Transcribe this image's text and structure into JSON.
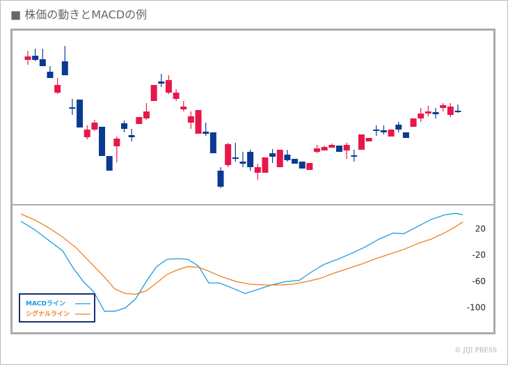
{
  "title": "■ 株価の動きとMACDの例",
  "credit": "© JIJI PRESS",
  "chart_data": [
    {
      "type": "candlestick",
      "ylim": [
        7,
        255
      ],
      "up_color": "#e8174a",
      "down_color": "#0a3a91",
      "open": [
        214,
        220,
        215,
        197,
        167,
        212,
        146,
        157,
        103,
        114,
        118,
        76,
        90,
        123,
        106,
        122,
        130,
        155,
        183,
        167,
        158,
        143,
        124,
        108,
        111,
        110,
        55,
        63,
        74,
        68,
        82,
        52,
        52,
        80,
        60,
        78,
        72,
        68,
        56,
        82,
        84,
        88,
        91,
        84,
        77,
        85,
        97,
        114,
        113,
        104,
        121,
        110,
        118,
        130,
        137,
        139,
        145,
        135,
        141
      ],
      "high": [
        227,
        230,
        230,
        205,
        188,
        234,
        158,
        157,
        120,
        128,
        118,
        76,
        104,
        127,
        115,
        132,
        152,
        178,
        194,
        192,
        172,
        155,
        140,
        142,
        124,
        110,
        60,
        95,
        95,
        82,
        85,
        65,
        74,
        86,
        85,
        85,
        72,
        68,
        66,
        92,
        91,
        94,
        91,
        95,
        85,
        107,
        102,
        120,
        120,
        114,
        125,
        110,
        130,
        145,
        148,
        145,
        152,
        152,
        150
      ],
      "low": [
        207,
        212,
        205,
        188,
        165,
        192,
        135,
        117,
        100,
        112,
        76,
        55,
        67,
        110,
        97,
        122,
        128,
        155,
        175,
        165,
        155,
        140,
        115,
        108,
        105,
        80,
        30,
        60,
        68,
        60,
        55,
        42,
        52,
        66,
        60,
        68,
        65,
        58,
        56,
        80,
        84,
        88,
        82,
        72,
        68,
        85,
        97,
        105,
        107,
        104,
        110,
        102,
        118,
        125,
        133,
        130,
        140,
        132,
        138
      ],
      "close": [
        219,
        214,
        205,
        188,
        178,
        192,
        144,
        117,
        114,
        124,
        76,
        55,
        101,
        115,
        103,
        132,
        140,
        178,
        180,
        185,
        167,
        147,
        133,
        142,
        108,
        80,
        32,
        93,
        72,
        65,
        60,
        60,
        74,
        75,
        85,
        70,
        65,
        58,
        66,
        87,
        89,
        92,
        82,
        92,
        75,
        107,
        102,
        112,
        110,
        114,
        114,
        102,
        130,
        137,
        140,
        136,
        149,
        147,
        139
      ]
    },
    {
      "type": "line",
      "xlim": [
        0,
        635
      ],
      "ylim": [
        -137,
        56
      ],
      "yticks": [
        20,
        -20,
        -60,
        -100
      ],
      "legend": "lower left",
      "series": [
        {
          "name": "MACDライン",
          "color": "#1a9be0",
          "x": [
            0,
            20,
            40,
            60,
            75,
            90,
            105,
            120,
            135,
            150,
            165,
            180,
            195,
            210,
            225,
            240,
            255,
            270,
            285,
            300,
            322,
            340,
            360,
            380,
            400,
            415,
            435,
            455,
            475,
            495,
            515,
            535,
            550,
            570,
            590,
            610,
            625,
            635
          ],
          "values": [
            32,
            19,
            3,
            -13,
            -39,
            -60,
            -76,
            -105,
            -105,
            -100,
            -86,
            -60,
            -37,
            -26,
            -25,
            -26,
            -36,
            -62,
            -62,
            -68,
            -78,
            -72,
            -65,
            -60,
            -58,
            -47,
            -34,
            -26,
            -17,
            -7,
            5,
            14,
            13,
            24,
            35,
            42,
            44,
            42
          ]
        },
        {
          "name": "シグナルライン",
          "color": "#f07d1a",
          "x": [
            0,
            20,
            40,
            60,
            80,
            100,
            120,
            135,
            150,
            165,
            180,
            195,
            210,
            225,
            240,
            255,
            270,
            290,
            310,
            330,
            350,
            370,
            390,
            410,
            430,
            450,
            470,
            490,
            510,
            530,
            550,
            570,
            590,
            610,
            625,
            635
          ],
          "values": [
            43,
            34,
            22,
            8,
            -9,
            -31,
            -53,
            -71,
            -78,
            -79,
            -74,
            -62,
            -49,
            -42,
            -37,
            -38,
            -44,
            -53,
            -60,
            -64,
            -65,
            -65,
            -64,
            -60,
            -55,
            -47,
            -40,
            -33,
            -25,
            -18,
            -11,
            -2,
            5,
            15,
            24,
            31
          ]
        }
      ]
    }
  ]
}
